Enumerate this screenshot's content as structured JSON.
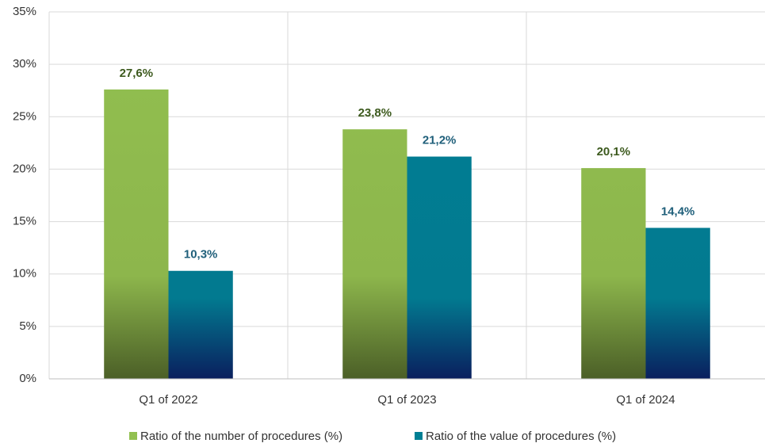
{
  "chart_data": {
    "type": "bar",
    "categories": [
      "Q1 of 2022",
      "Q1 of 2023",
      "Q1 of 2024"
    ],
    "series": [
      {
        "name": "Ratio of the number of procedures (%)",
        "color": "#92c050",
        "values": [
          27.6,
          23.8,
          20.1
        ],
        "value_labels": [
          "27,6%",
          "23,8%",
          "20,1%"
        ]
      },
      {
        "name": "Ratio of the value of procedures (%)",
        "color": "#007f94",
        "values": [
          10.3,
          21.2,
          14.4
        ],
        "value_labels": [
          "10,3%",
          "21,2%",
          "14,4%"
        ]
      }
    ],
    "ylim": [
      0,
      35
    ],
    "yticks": [
      {
        "value": 0,
        "label": "0%"
      },
      {
        "value": 5,
        "label": "5%"
      },
      {
        "value": 10,
        "label": "10%"
      },
      {
        "value": 15,
        "label": "15%"
      },
      {
        "value": 20,
        "label": "20%"
      },
      {
        "value": 25,
        "label": "25%"
      },
      {
        "value": 30,
        "label": "30%"
      },
      {
        "value": 35,
        "label": "35%"
      }
    ],
    "grid": true
  }
}
